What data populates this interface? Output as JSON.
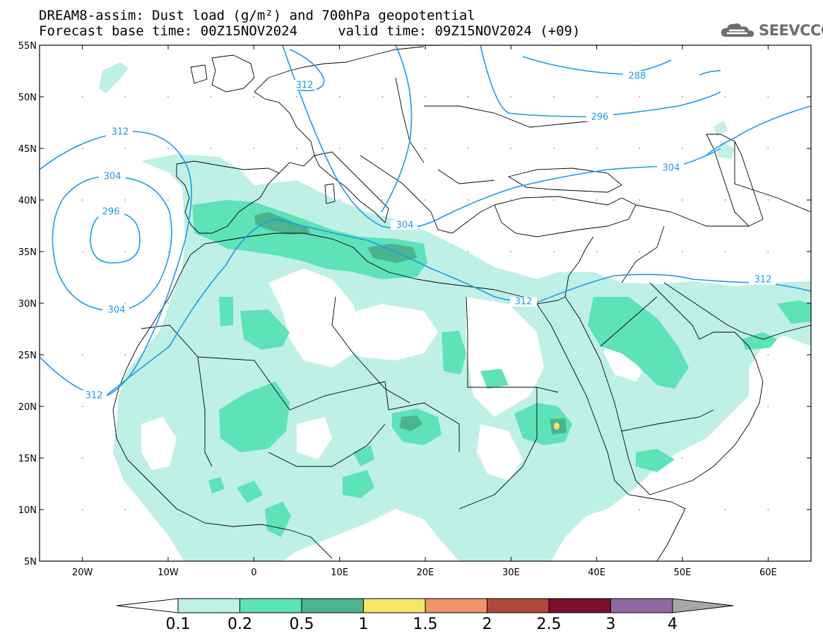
{
  "header": {
    "title_line_1": "DREAM8-assim: Dust load (g/m²) and 700hPa geopotential",
    "title_line_2": "Forecast base time: 00Z15NOV2024     valid time: 09Z15NOV2024 (+09)"
  },
  "logo": {
    "text": "SEEVCCC",
    "icon": "cloud-logo-icon"
  },
  "map": {
    "lon_range": [
      -25,
      65
    ],
    "lat_range": [
      5,
      55
    ],
    "lat_labels": [
      "55N",
      "50N",
      "45N",
      "40N",
      "35N",
      "30N",
      "25N",
      "20N",
      "15N",
      "10N",
      "5N"
    ],
    "lon_labels": [
      "20W",
      "10W",
      "0",
      "10E",
      "20E",
      "30E",
      "40E",
      "50E",
      "60E"
    ],
    "contour_color": "#1a9be8",
    "geopotential_labels": [
      "288",
      "296",
      "304",
      "312",
      "312",
      "304",
      "296",
      "304",
      "312",
      "312",
      "312",
      "304"
    ]
  },
  "colorbar": {
    "tick_labels": [
      "0.1",
      "0.2",
      "0.5",
      "1",
      "1.5",
      "2",
      "2.5",
      "3",
      "4"
    ],
    "colors": [
      "#ffffff",
      "#bff0e6",
      "#5ee2b8",
      "#4bb38d",
      "#f5e56b",
      "#ee9466",
      "#b0473c",
      "#7c0f2c",
      "#8e6aa0",
      "#a8a8a8"
    ]
  }
}
